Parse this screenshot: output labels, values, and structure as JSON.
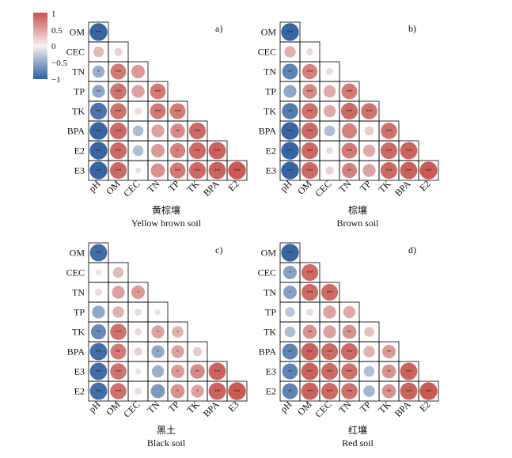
{
  "colorbar": {
    "ticks": [
      "1",
      "0.5",
      "0",
      "−0.5",
      "−1"
    ],
    "colors": {
      "pos": "#C8524B",
      "neg": "#2E5E9E",
      "mid": "#F2F2F2"
    }
  },
  "chart_data": [
    {
      "type": "heatmap",
      "panel_label": "a)",
      "title_cn": "黄棕壤",
      "title_en": "Yellow brown soil",
      "row_labels": [
        "OM",
        "CEC",
        "TN",
        "TP",
        "TK",
        "BPA",
        "E2",
        "E3"
      ],
      "col_labels": [
        "pH",
        "OM",
        "CEC",
        "TN",
        "TP",
        "TK",
        "BPA",
        "E2"
      ],
      "values": [
        [
          -0.95
        ],
        [
          0.35,
          0.2
        ],
        [
          -0.45,
          0.75,
          0.55
        ],
        [
          -0.5,
          0.8,
          0.5,
          0.75
        ],
        [
          -0.85,
          0.8,
          0.15,
          0.75,
          0.75
        ],
        [
          -0.95,
          0.85,
          -0.35,
          0.5,
          0.65,
          0.85
        ],
        [
          -0.95,
          0.85,
          -0.35,
          0.55,
          0.7,
          0.85,
          0.9
        ],
        [
          -0.95,
          0.85,
          0.1,
          0.6,
          0.75,
          0.85,
          0.9,
          0.95
        ]
      ],
      "significance": [
        [
          "***"
        ],
        [
          "",
          ""
        ],
        [
          "*",
          "***",
          ""
        ],
        [
          "**",
          "***",
          "",
          "***"
        ],
        [
          "***",
          "***",
          "",
          "***",
          "***"
        ],
        [
          "***",
          "***",
          "",
          "",
          "**",
          "***"
        ],
        [
          "***",
          "***",
          "",
          "",
          "*",
          "***",
          "***"
        ],
        [
          "***",
          "***",
          "",
          "",
          "***",
          "***",
          "***",
          "***"
        ]
      ]
    },
    {
      "type": "heatmap",
      "panel_label": "b)",
      "title_cn": "棕壤",
      "title_en": "Brown soil",
      "row_labels": [
        "OM",
        "CEC",
        "TN",
        "TP",
        "TK",
        "BPA",
        "E2",
        "E3"
      ],
      "col_labels": [
        "pH",
        "OM",
        "CEC",
        "TN",
        "TP",
        "TK",
        "BPA",
        "E2"
      ],
      "values": [
        [
          -0.95
        ],
        [
          0.4,
          0.15
        ],
        [
          -0.75,
          0.7,
          0.15
        ],
        [
          -0.5,
          0.65,
          0.45,
          0.75
        ],
        [
          -0.8,
          0.8,
          0.45,
          0.85,
          0.8
        ],
        [
          -0.95,
          0.85,
          -0.35,
          0.7,
          0.25,
          0.8
        ],
        [
          -0.95,
          0.85,
          0.15,
          0.75,
          0.45,
          0.85,
          0.9
        ],
        [
          -0.95,
          0.85,
          0.2,
          0.7,
          0.5,
          0.85,
          0.9,
          0.95
        ]
      ],
      "significance": [
        [
          "***"
        ],
        [
          "",
          ""
        ],
        [
          "**",
          "***",
          ""
        ],
        [
          "",
          "***",
          "",
          "***"
        ],
        [
          "**",
          "***",
          "",
          "***",
          "***"
        ],
        [
          "***",
          "***",
          "",
          "",
          "",
          "***"
        ],
        [
          "***",
          "***",
          "",
          "***",
          "",
          "***",
          "***"
        ],
        [
          "***",
          "***",
          "",
          "**",
          "",
          "***",
          "***",
          "***"
        ]
      ]
    },
    {
      "type": "heatmap",
      "panel_label": "c)",
      "title_cn": "黑土",
      "title_en": "Black soil",
      "row_labels": [
        "OM",
        "CEC",
        "TN",
        "TP",
        "TK",
        "BPA",
        "E3",
        "E2"
      ],
      "col_labels": [
        "pH",
        "OM",
        "CEC",
        "TN",
        "TP",
        "TK",
        "BPA",
        "E3"
      ],
      "values": [
        [
          -0.9
        ],
        [
          0.1,
          0.35
        ],
        [
          0.15,
          0.5,
          0.55
        ],
        [
          -0.5,
          0.4,
          0.15,
          0.1
        ],
        [
          -0.7,
          0.8,
          0.15,
          0.5,
          0.4
        ],
        [
          -0.9,
          0.75,
          0.2,
          -0.5,
          0.5,
          0.25
        ],
        [
          -0.9,
          0.8,
          0.1,
          -0.45,
          0.55,
          0.65,
          0.9
        ],
        [
          -0.9,
          0.8,
          0.15,
          -0.6,
          0.6,
          0.5,
          0.9,
          0.95
        ]
      ],
      "significance": [
        [
          "***"
        ],
        [
          "",
          ""
        ],
        [
          "",
          "",
          "*"
        ],
        [
          "",
          "",
          "",
          ""
        ],
        [
          "**",
          "***",
          "",
          "*",
          "*"
        ],
        [
          "***",
          "**",
          "",
          "*",
          "*",
          ""
        ],
        [
          "***",
          "***",
          "",
          "",
          "*",
          "**",
          "***"
        ],
        [
          "***",
          "***",
          "",
          "",
          "*",
          "*",
          "***",
          "***"
        ]
      ]
    },
    {
      "type": "heatmap",
      "panel_label": "d)",
      "title_cn": "红壤",
      "title_en": "Red soil",
      "row_labels": [
        "OM",
        "CEC",
        "TN",
        "TP",
        "TK",
        "BPA",
        "E3",
        "E2"
      ],
      "col_labels": [
        "pH",
        "OM",
        "CEC",
        "TN",
        "TP",
        "TK",
        "BPA",
        "E2"
      ],
      "values": [
        [
          -0.95
        ],
        [
          -0.55,
          0.85
        ],
        [
          -0.55,
          0.85,
          0.85
        ],
        [
          -0.3,
          0.15,
          0.5,
          0.45
        ],
        [
          -0.35,
          0.6,
          0.5,
          0.6,
          0.3
        ],
        [
          -0.75,
          0.9,
          0.85,
          0.85,
          0.4,
          0.55
        ],
        [
          -0.75,
          0.9,
          0.85,
          0.8,
          -0.35,
          0.6,
          0.9
        ],
        [
          -0.75,
          0.9,
          0.85,
          0.8,
          -0.4,
          0.6,
          0.9,
          0.95
        ]
      ],
      "significance": [
        [
          "***"
        ],
        [
          "*",
          "***"
        ],
        [
          "*",
          "***",
          "***"
        ],
        [
          "",
          "",
          "",
          ""
        ],
        [
          "",
          "**",
          "",
          "**",
          ""
        ],
        [
          "**",
          "***",
          "***",
          "***",
          "",
          "**"
        ],
        [
          "**",
          "***",
          "***",
          "***",
          "",
          "**",
          "***"
        ],
        [
          "**",
          "***",
          "***",
          "***",
          "",
          "**",
          "***",
          "***"
        ]
      ]
    }
  ]
}
